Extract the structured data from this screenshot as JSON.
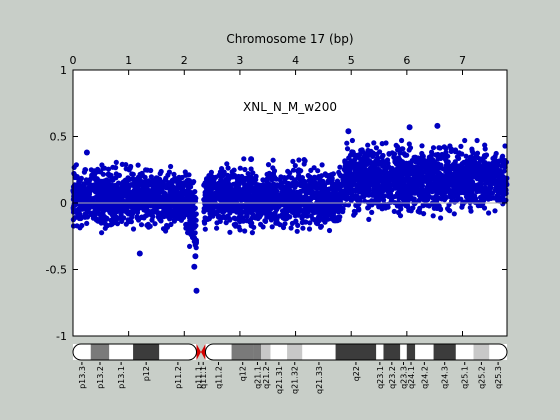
{
  "chart_data": {
    "type": "scatter",
    "title": "Chromosome 17 (bp)",
    "annotation": "XNL_N_M_w200",
    "x_ticks": [
      "0",
      "1",
      "2",
      "3",
      "4",
      "5",
      "6",
      "7"
    ],
    "y_ticks": [
      "1",
      "0.5",
      "0",
      "-0.5",
      "-1"
    ],
    "xlim": [
      0,
      7.8
    ],
    "ylim": [
      -1,
      1
    ],
    "x_tick_note": "x-axis values shown in units of 10^7 bp (as printed: 0..7)",
    "marker_color": "#0000c0",
    "zero_line_color": "#b0b0b0",
    "background_color": "#c8cec8",
    "plot_color": "#ffffff",
    "segments": [
      {
        "x_start": 0.0,
        "x_end": 2.22,
        "mean": 0.04,
        "spread": 0.1
      },
      {
        "x_start": 2.35,
        "x_end": 4.85,
        "mean": 0.04,
        "spread": 0.1
      },
      {
        "x_start": 4.85,
        "x_end": 7.8,
        "mean": 0.18,
        "spread": 0.11
      }
    ],
    "notable_points": [
      {
        "x": 2.22,
        "y": -0.66
      },
      {
        "x": 2.18,
        "y": -0.48
      },
      {
        "x": 2.2,
        "y": -0.4
      },
      {
        "x": 2.38,
        "y": 0.15
      },
      {
        "x": 4.95,
        "y": 0.54
      },
      {
        "x": 6.05,
        "y": 0.57
      },
      {
        "x": 6.55,
        "y": 0.58
      },
      {
        "x": 0.25,
        "y": 0.38
      },
      {
        "x": 1.2,
        "y": -0.38
      },
      {
        "x": 3.2,
        "y": 0.33
      }
    ],
    "ideogram": {
      "bands": [
        {
          "label": "p13.3",
          "x0": 0.0,
          "x1": 0.32,
          "shade": "white"
        },
        {
          "label": "p13.2",
          "x0": 0.32,
          "x1": 0.65,
          "shade": "gray"
        },
        {
          "label": "p13.1",
          "x0": 0.65,
          "x1": 1.08,
          "shade": "white"
        },
        {
          "label": "p12",
          "x0": 1.08,
          "x1": 1.55,
          "shade": "dark"
        },
        {
          "label": "p11.2",
          "x0": 1.55,
          "x1": 2.22,
          "shade": "white"
        },
        {
          "label": "p11.1",
          "x0": 2.22,
          "x1": 2.3,
          "shade": "centromere"
        },
        {
          "label": "q11.1",
          "x0": 2.3,
          "x1": 2.38,
          "shade": "centromere"
        },
        {
          "label": "q11.2",
          "x0": 2.38,
          "x1": 2.85,
          "shade": "white"
        },
        {
          "label": "q12",
          "x0": 2.85,
          "x1": 3.25,
          "shade": "gray"
        },
        {
          "label": "q21.1",
          "x0": 3.25,
          "x1": 3.38,
          "shade": "gray"
        },
        {
          "label": "q21.2",
          "x0": 3.38,
          "x1": 3.55,
          "shade": "light"
        },
        {
          "label": "q21.31",
          "x0": 3.55,
          "x1": 3.85,
          "shade": "white"
        },
        {
          "label": "q21.32",
          "x0": 3.85,
          "x1": 4.12,
          "shade": "light"
        },
        {
          "label": "q21.33",
          "x0": 4.12,
          "x1": 4.72,
          "shade": "white"
        },
        {
          "label": "q22",
          "x0": 4.72,
          "x1": 5.45,
          "shade": "dark"
        },
        {
          "label": "q23.1",
          "x0": 5.45,
          "x1": 5.58,
          "shade": "white"
        },
        {
          "label": "q23.2",
          "x0": 5.58,
          "x1": 5.88,
          "shade": "dark"
        },
        {
          "label": "q23.3",
          "x0": 5.88,
          "x1": 6.0,
          "shade": "white"
        },
        {
          "label": "q24.1",
          "x0": 6.0,
          "x1": 6.15,
          "shade": "dark"
        },
        {
          "label": "q24.2",
          "x0": 6.15,
          "x1": 6.48,
          "shade": "white"
        },
        {
          "label": "q24.3",
          "x0": 6.48,
          "x1": 6.88,
          "shade": "dark"
        },
        {
          "label": "q25.1",
          "x0": 6.88,
          "x1": 7.2,
          "shade": "white"
        },
        {
          "label": "q25.2",
          "x0": 7.2,
          "x1": 7.48,
          "shade": "light"
        },
        {
          "label": "q25.3",
          "x0": 7.48,
          "x1": 7.8,
          "shade": "white"
        }
      ]
    }
  }
}
